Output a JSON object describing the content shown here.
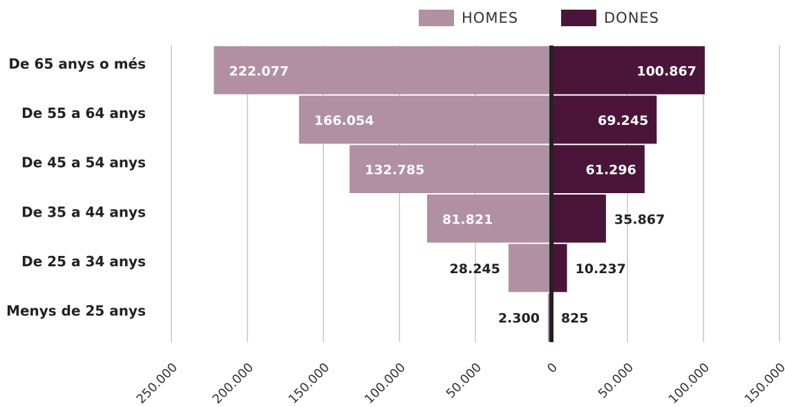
{
  "chart_data": {
    "type": "butterfly-bar",
    "categories": [
      "De 65 anys o més",
      "De 55 a 64 anys",
      "De 45 a 54 anys",
      "De 35 a 44 anys",
      "De 25 a 34 anys",
      "Menys de 25 anys"
    ],
    "series": [
      {
        "name": "HOMES",
        "color": "#b090a2",
        "values": [
          -222077,
          -166054,
          -132785,
          -81821,
          -28245,
          -2300
        ],
        "value_labels": [
          "222.077",
          "166.054",
          "132.785",
          "81.821",
          "28.245",
          "2.300"
        ]
      },
      {
        "name": "DONES",
        "color": "#4a1538",
        "values": [
          100867,
          69245,
          61296,
          35867,
          10237,
          825
        ],
        "value_labels": [
          "100.867",
          "69.245",
          "61.296",
          "35.867",
          "10.237",
          "825"
        ]
      }
    ],
    "xlim": [
      -250000,
      150000
    ],
    "xticks": [
      {
        "value": -250000,
        "label": "250.000"
      },
      {
        "value": -200000,
        "label": "200.000"
      },
      {
        "value": -150000,
        "label": "150.000"
      },
      {
        "value": -100000,
        "label": "100.000"
      },
      {
        "value": -50000,
        "label": "50.000"
      },
      0,
      {
        "value": 50000,
        "label": "50.000"
      },
      {
        "value": 100000,
        "label": "100.000"
      },
      {
        "value": 150000,
        "label": "150.000"
      }
    ],
    "grid": true,
    "legend": "top"
  }
}
